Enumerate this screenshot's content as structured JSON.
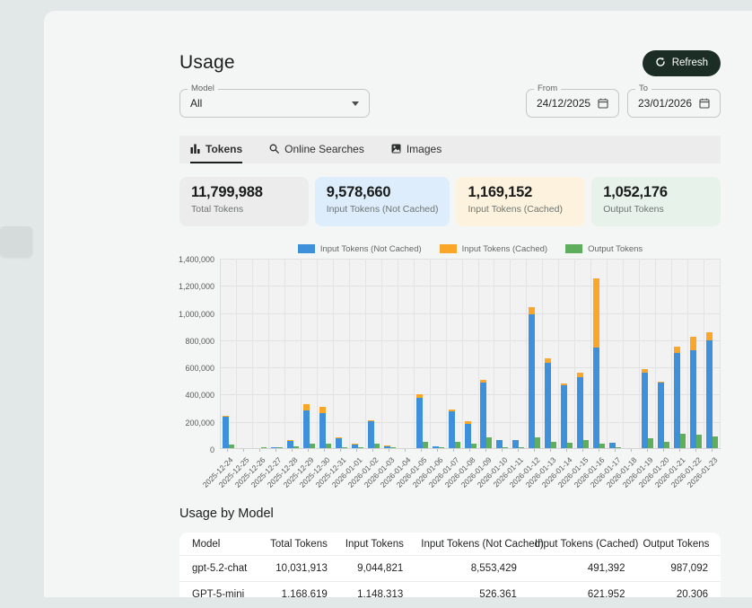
{
  "page": {
    "title": "Usage",
    "refresh_label": "Refresh"
  },
  "filters": {
    "model": {
      "label": "Model",
      "value": "All"
    },
    "from": {
      "label": "From",
      "value": "24/12/2025"
    },
    "to": {
      "label": "To",
      "value": "23/01/2026"
    }
  },
  "tabs": [
    {
      "label": "Tokens",
      "icon": "bar-chart-icon",
      "active": true
    },
    {
      "label": "Online Searches",
      "icon": "search-icon",
      "active": false
    },
    {
      "label": "Images",
      "icon": "image-icon",
      "active": false
    }
  ],
  "stat_cards": [
    {
      "value": "11,799,988",
      "label": "Total Tokens",
      "bg": "#ececec"
    },
    {
      "value": "9,578,660",
      "label": "Input Tokens (Not Cached)",
      "bg": "#ddedfb"
    },
    {
      "value": "1,169,152",
      "label": "Input Tokens (Cached)",
      "bg": "#fdf2dd"
    },
    {
      "value": "1,052,176",
      "label": "Output Tokens",
      "bg": "#e7f2eb"
    }
  ],
  "chart_data": {
    "type": "bar",
    "stacked": "input series stacked together; output tokens as separate bar per day",
    "ylim": [
      0,
      1400000
    ],
    "y_ticks": [
      "1,400,000",
      "1,200,000",
      "1,000,000",
      "800,000",
      "600,000",
      "400,000",
      "200,000",
      "0"
    ],
    "grid": true,
    "legend_position": "top-center",
    "x": [
      "2025-12-24",
      "2025-12-25",
      "2025-12-26",
      "2025-12-27",
      "2025-12-28",
      "2025-12-29",
      "2025-12-30",
      "2025-12-31",
      "2026-01-01",
      "2026-01-02",
      "2026-01-03",
      "2026-01-04",
      "2026-01-05",
      "2026-01-06",
      "2026-01-07",
      "2026-01-08",
      "2026-01-09",
      "2026-01-10",
      "2026-01-11",
      "2026-01-12",
      "2026-01-13",
      "2026-01-14",
      "2026-01-15",
      "2026-01-16",
      "2026-01-17",
      "2026-01-18",
      "2026-01-19",
      "2026-01-20",
      "2026-01-21",
      "2026-01-22",
      "2026-01-23"
    ],
    "series": [
      {
        "name": "Input Tokens (Not Cached)",
        "color": "#3f90da",
        "stack": "input",
        "values": [
          230000,
          0,
          0,
          8000,
          52000,
          280000,
          260000,
          75000,
          28000,
          198000,
          15000,
          0,
          368000,
          12000,
          270000,
          180000,
          480000,
          60000,
          60000,
          985000,
          630000,
          465000,
          523000,
          738000,
          39000,
          0,
          555000,
          479000,
          700000,
          720000,
          790000
        ]
      },
      {
        "name": "Input Tokens (Cached)",
        "color": "#f9a62a",
        "stack": "input",
        "values": [
          9000,
          0,
          0,
          0,
          4000,
          47000,
          43000,
          5000,
          2000,
          8000,
          2000,
          0,
          30000,
          0,
          13000,
          17000,
          21000,
          0,
          0,
          54000,
          32000,
          10000,
          32000,
          508000,
          0,
          0,
          26000,
          8000,
          45000,
          100000,
          60000
        ]
      },
      {
        "name": "Output Tokens",
        "color": "#5eae5e",
        "stack": "output",
        "values": [
          24000,
          0,
          1000,
          2000,
          11000,
          32000,
          32000,
          10000,
          3000,
          34000,
          5000,
          0,
          45000,
          2000,
          45000,
          32000,
          80000,
          5000,
          8000,
          82000,
          45000,
          39000,
          60000,
          32000,
          8000,
          0,
          75000,
          45000,
          103000,
          97000,
          85000
        ]
      }
    ]
  },
  "usage_by_model": {
    "title": "Usage by Model",
    "columns": [
      "Model",
      "Total Tokens",
      "Input Tokens",
      "Input Tokens (Not Cached)",
      "Input Tokens (Cached)",
      "Output Tokens"
    ],
    "rows": [
      [
        "gpt-5.2-chat",
        "10,031,913",
        "9,044,821",
        "8,553,429",
        "491,392",
        "987,092"
      ],
      [
        "GPT-5-mini",
        "1,168,619",
        "1,148,313",
        "526,361",
        "621,952",
        "20,306"
      ]
    ]
  }
}
